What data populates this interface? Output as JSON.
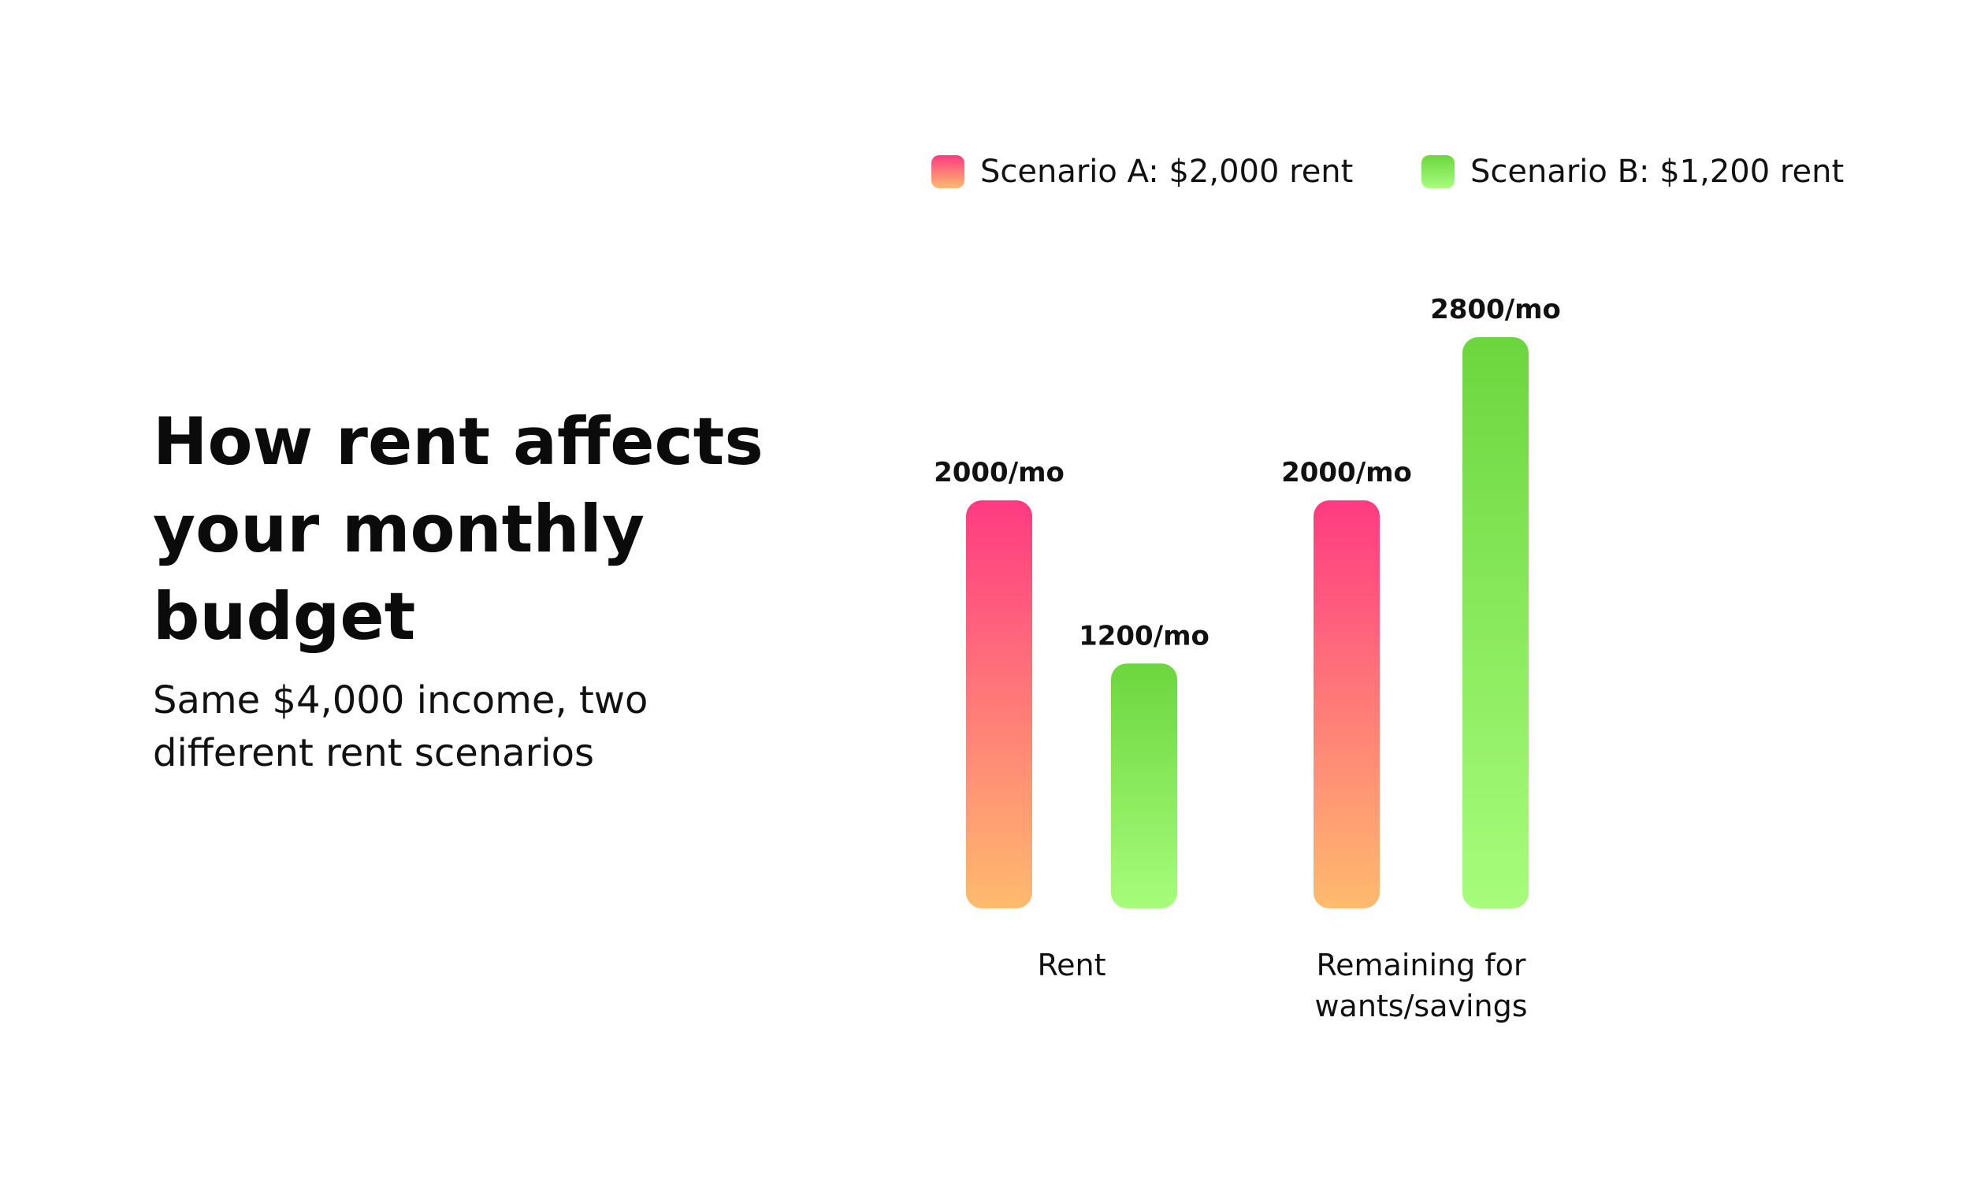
{
  "title": "How rent affects your monthly budget",
  "subtitle": "Same $4,000 income, two different rent scenarios",
  "chart_data": {
    "type": "bar",
    "categories": [
      [
        "Rent"
      ],
      [
        "Remaining for",
        "wants/savings"
      ]
    ],
    "series": [
      {
        "name": "Scenario A: $2,000 rent",
        "values": [
          2000,
          2000
        ],
        "labels": [
          "2000/mo",
          "2000/mo"
        ],
        "gradient": [
          "#ff3a82",
          "#ffbb6e"
        ]
      },
      {
        "name": "Scenario B: $1,200 rent",
        "values": [
          1200,
          2800
        ],
        "labels": [
          "1200/mo",
          "2800/mo"
        ],
        "gradient": [
          "#6cd63e",
          "#a7fd7b"
        ]
      }
    ],
    "ylim": [
      0,
      2800
    ],
    "grid": false,
    "legend_position": "top"
  }
}
